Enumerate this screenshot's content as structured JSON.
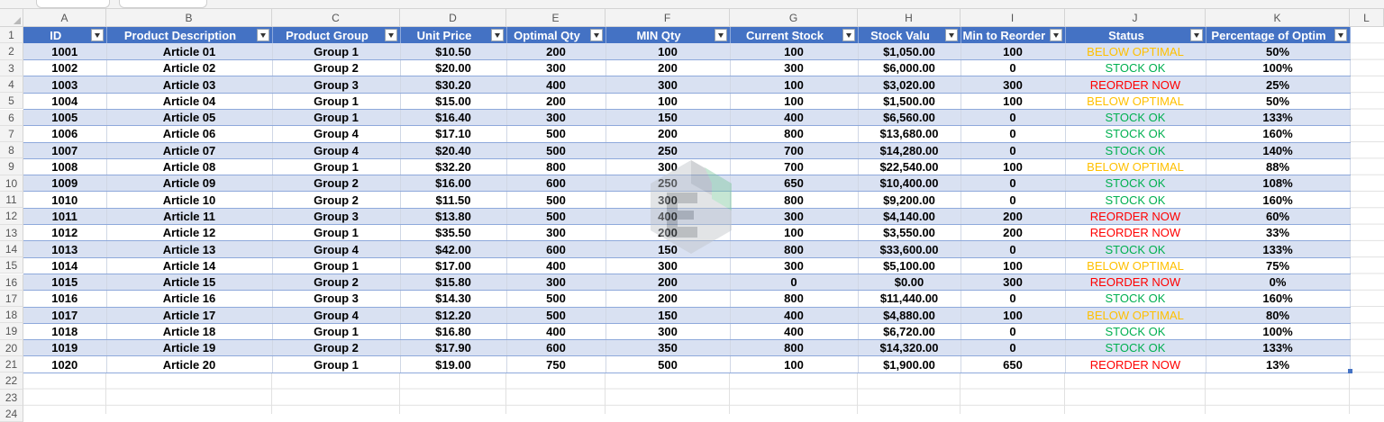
{
  "column_letters": [
    "A",
    "B",
    "C",
    "D",
    "E",
    "F",
    "G",
    "H",
    "I",
    "J",
    "K",
    "L"
  ],
  "row_numbers": [
    "1",
    "2",
    "3",
    "4",
    "5",
    "6",
    "7",
    "8",
    "9",
    "10",
    "11",
    "12",
    "13",
    "14",
    "15",
    "16",
    "17",
    "18",
    "19",
    "20",
    "21",
    "22",
    "23",
    "24"
  ],
  "headers": [
    "ID",
    "Product Description",
    "Product Group",
    "Unit Price",
    "Optimal Qty",
    "MIN Qty",
    "Current Stock",
    "Stock Valu",
    "Min to Reorder",
    "Status",
    "Percentage of Optim"
  ],
  "rows": [
    [
      "1001",
      "Article 01",
      "Group 1",
      "$10.50",
      "200",
      "100",
      "100",
      "$1,050.00",
      "100",
      "BELOW OPTIMAL",
      "50%"
    ],
    [
      "1002",
      "Article 02",
      "Group 2",
      "$20.00",
      "300",
      "200",
      "300",
      "$6,000.00",
      "0",
      "STOCK OK",
      "100%"
    ],
    [
      "1003",
      "Article 03",
      "Group 3",
      "$30.20",
      "400",
      "300",
      "100",
      "$3,020.00",
      "300",
      "REORDER NOW",
      "25%"
    ],
    [
      "1004",
      "Article 04",
      "Group 1",
      "$15.00",
      "200",
      "100",
      "100",
      "$1,500.00",
      "100",
      "BELOW OPTIMAL",
      "50%"
    ],
    [
      "1005",
      "Article 05",
      "Group 1",
      "$16.40",
      "300",
      "150",
      "400",
      "$6,560.00",
      "0",
      "STOCK OK",
      "133%"
    ],
    [
      "1006",
      "Article 06",
      "Group 4",
      "$17.10",
      "500",
      "200",
      "800",
      "$13,680.00",
      "0",
      "STOCK OK",
      "160%"
    ],
    [
      "1007",
      "Article 07",
      "Group 4",
      "$20.40",
      "500",
      "250",
      "700",
      "$14,280.00",
      "0",
      "STOCK OK",
      "140%"
    ],
    [
      "1008",
      "Article 08",
      "Group 1",
      "$32.20",
      "800",
      "300",
      "700",
      "$22,540.00",
      "100",
      "BELOW OPTIMAL",
      "88%"
    ],
    [
      "1009",
      "Article 09",
      "Group 2",
      "$16.00",
      "600",
      "250",
      "650",
      "$10,400.00",
      "0",
      "STOCK OK",
      "108%"
    ],
    [
      "1010",
      "Article 10",
      "Group 2",
      "$11.50",
      "500",
      "300",
      "800",
      "$9,200.00",
      "0",
      "STOCK OK",
      "160%"
    ],
    [
      "1011",
      "Article 11",
      "Group 3",
      "$13.80",
      "500",
      "400",
      "300",
      "$4,140.00",
      "200",
      "REORDER NOW",
      "60%"
    ],
    [
      "1012",
      "Article 12",
      "Group 1",
      "$35.50",
      "300",
      "200",
      "100",
      "$3,550.00",
      "200",
      "REORDER NOW",
      "33%"
    ],
    [
      "1013",
      "Article 13",
      "Group 4",
      "$42.00",
      "600",
      "150",
      "800",
      "$33,600.00",
      "0",
      "STOCK OK",
      "133%"
    ],
    [
      "1014",
      "Article 14",
      "Group 1",
      "$17.00",
      "400",
      "300",
      "300",
      "$5,100.00",
      "100",
      "BELOW OPTIMAL",
      "75%"
    ],
    [
      "1015",
      "Article 15",
      "Group 2",
      "$15.80",
      "300",
      "200",
      "0",
      "$0.00",
      "300",
      "REORDER NOW",
      "0%"
    ],
    [
      "1016",
      "Article 16",
      "Group 3",
      "$14.30",
      "500",
      "200",
      "800",
      "$11,440.00",
      "0",
      "STOCK OK",
      "160%"
    ],
    [
      "1017",
      "Article 17",
      "Group 4",
      "$12.20",
      "500",
      "150",
      "400",
      "$4,880.00",
      "100",
      "BELOW OPTIMAL",
      "80%"
    ],
    [
      "1018",
      "Article 18",
      "Group 1",
      "$16.80",
      "400",
      "300",
      "400",
      "$6,720.00",
      "0",
      "STOCK OK",
      "100%"
    ],
    [
      "1019",
      "Article 19",
      "Group 2",
      "$17.90",
      "600",
      "350",
      "800",
      "$14,320.00",
      "0",
      "STOCK OK",
      "133%"
    ],
    [
      "1020",
      "Article 20",
      "Group 1",
      "$19.00",
      "750",
      "500",
      "100",
      "$1,900.00",
      "650",
      "REORDER NOW",
      "13%"
    ]
  ],
  "status_colors": {
    "STOCK OK": "#00b050",
    "BELOW OPTIMAL": "#ffc000",
    "REORDER NOW": "#ff0000"
  },
  "colors": {
    "header_bg": "#4472c4",
    "band_bg": "#d9e1f2",
    "sheet_chrome": "#f3f3f3"
  },
  "watermark_icon": "exceldemy-logo-icon"
}
